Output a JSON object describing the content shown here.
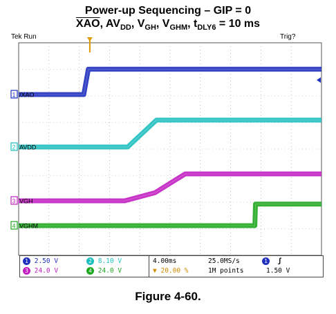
{
  "title": {
    "line1": "Power-up Sequencing – GIP = 0",
    "line2_parts": [
      "XAO",
      ", AV",
      "DD",
      ", V",
      "GH",
      ", V",
      "GHM",
      ", t",
      "DLY6",
      " = 10 ms"
    ]
  },
  "status": {
    "left": "Tek Run",
    "right": "Trig?"
  },
  "chart_data": {
    "type": "line",
    "title": "Power-up Sequencing – GIP = 0",
    "xlabel": "",
    "ylabel": "",
    "x_unit": "div",
    "xlim": [
      0,
      10
    ],
    "ylim": [
      -4,
      4
    ],
    "grid": true,
    "series": [
      {
        "name": "XAO",
        "label": "1/XAO",
        "channel": "1",
        "color": "#1f2fbf",
        "points": [
          [
            0,
            0
          ],
          [
            2.15,
            0
          ],
          [
            2.3,
            2.3
          ],
          [
            10,
            2.3
          ]
        ]
      },
      {
        "name": "AVDD",
        "label": "AVDD",
        "channel": "2",
        "color": "#1fbfbf",
        "points": [
          [
            0,
            0
          ],
          [
            3.6,
            0
          ],
          [
            4.55,
            1.0
          ],
          [
            10,
            1.0
          ]
        ]
      },
      {
        "name": "VGH",
        "label": "VGH",
        "channel": "3",
        "color": "#c21fc2",
        "points": [
          [
            0,
            0
          ],
          [
            3.5,
            0
          ],
          [
            4.5,
            0.3
          ],
          [
            5.5,
            1.0
          ],
          [
            10,
            1.0
          ]
        ]
      },
      {
        "name": "VGHM",
        "label": "VGHM",
        "channel": "4",
        "color": "#1fa81f",
        "points": [
          [
            0,
            0
          ],
          [
            7.8,
            0
          ],
          [
            7.82,
            0.8
          ],
          [
            10,
            0.8
          ]
        ]
      }
    ],
    "trigger_position_div": 2.35
  },
  "readout": {
    "ch1": {
      "num": "1",
      "scale": "2.50 V",
      "color": "#1f2fbf"
    },
    "ch2": {
      "num": "2",
      "scale": "8.10 V",
      "color": "#1fbfbf"
    },
    "ch3": {
      "num": "3",
      "scale": "24.0 V",
      "color": "#c21fc2"
    },
    "ch4": {
      "num": "4",
      "scale": "24.0 V",
      "color": "#1fa81f"
    },
    "timebase": "4.00ms",
    "trigger_pos": "20.00 %",
    "sample_rate": "25.0MS/s",
    "record": "1M points",
    "trig_source": "1",
    "trig_slope": "ʃ",
    "trig_level": "1.50 V"
  },
  "caption": "Figure 4-60."
}
